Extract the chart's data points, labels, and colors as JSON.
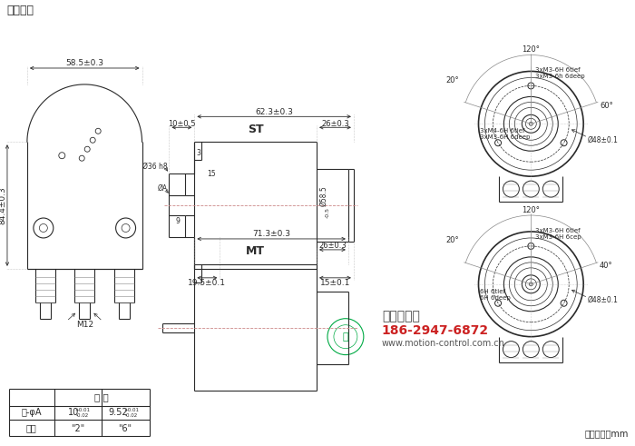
{
  "title": "夹紧法兰",
  "bg_color": "#ffffff",
  "line_color": "#2a2a2a",
  "dim_color": "#2a2a2a",
  "dash_color": "#cc8888",
  "watermark_color": "#00aa44",
  "red_color": "#cc2222",
  "unit_text": "尺寸单位：mm",
  "company_text": "西安德伍拓",
  "phone_text": "186-2947-6872",
  "website_text": "www.motion-control.com.cn"
}
